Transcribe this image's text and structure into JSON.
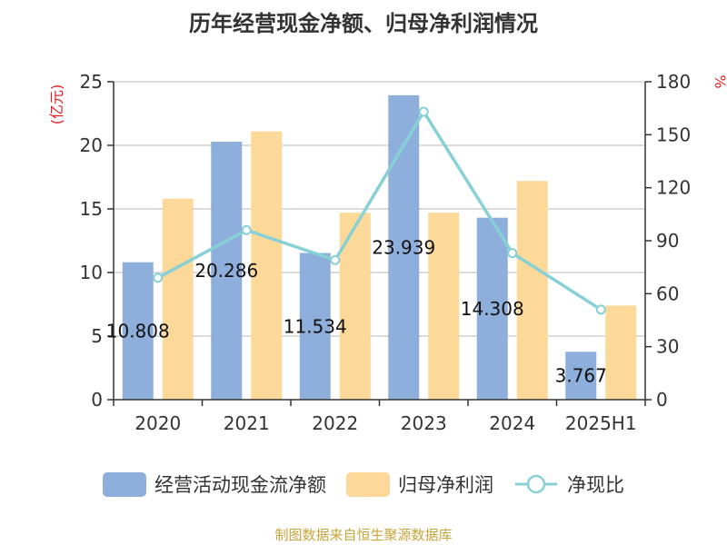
{
  "title": "历年经营现金净额、归母净利润情况",
  "source": "制图数据来自恒生聚源数据库",
  "colors": {
    "cash": "#8eaedb",
    "profit": "#fcd999",
    "ratio": "#87d1d6",
    "unit": "#e02020",
    "source": "#c8a43c"
  },
  "chart_data": {
    "type": "bar",
    "categories": [
      "2020",
      "2021",
      "2022",
      "2023",
      "2024",
      "2025H1"
    ],
    "series": [
      {
        "name": "经营活动现金流净额",
        "type": "bar",
        "axis": "left",
        "values": [
          10.808,
          20.286,
          11.534,
          23.939,
          14.308,
          3.767
        ],
        "labels": [
          "10.808",
          "20.286",
          "11.534",
          "23.939",
          "14.308",
          "3.767"
        ]
      },
      {
        "name": "归母净利润",
        "type": "bar",
        "axis": "left",
        "values": [
          15.8,
          21.1,
          14.7,
          14.7,
          17.2,
          7.4
        ]
      },
      {
        "name": "净现比",
        "type": "line",
        "axis": "right",
        "values": [
          69,
          96,
          79,
          163,
          83,
          51
        ]
      }
    ],
    "y_left": {
      "label": "(亿元)",
      "min": 0,
      "max": 25,
      "ticks": [
        0,
        5,
        10,
        15,
        20,
        25
      ]
    },
    "y_right": {
      "label": "%",
      "min": 0,
      "max": 180,
      "ticks": [
        0,
        30,
        60,
        90,
        120,
        150,
        180
      ]
    },
    "grid": true,
    "legend": "bottom"
  }
}
